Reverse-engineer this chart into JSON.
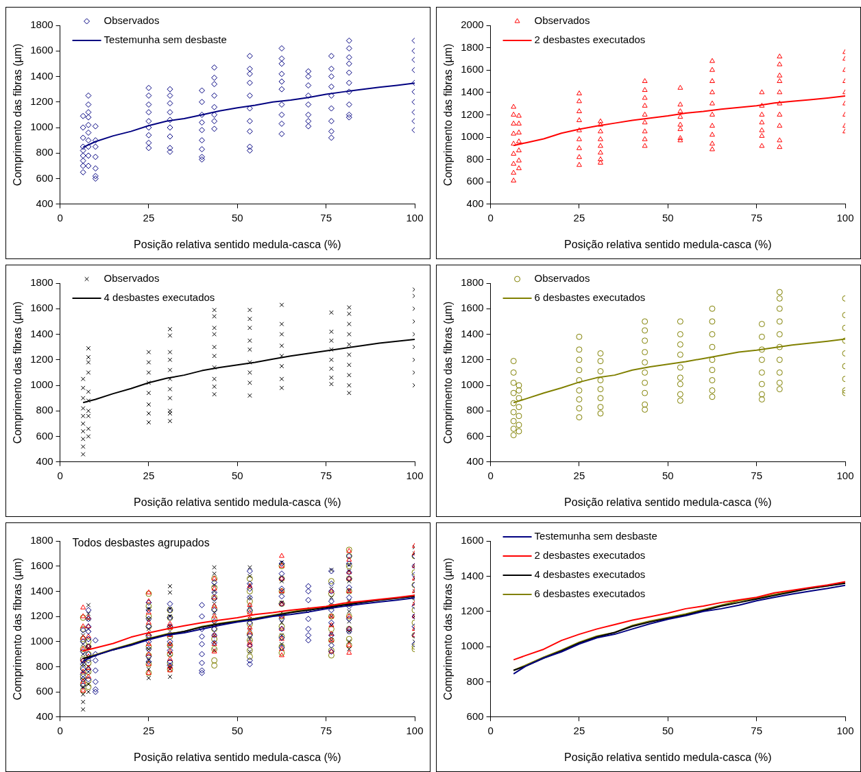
{
  "chart_data": [
    {
      "type": "scatter",
      "xlabel": "Posição relativa sentido medula-casca (%)",
      "ylabel": "Comprimento das fibras (µm)",
      "xlim": [
        0,
        100
      ],
      "xticks": [
        0,
        25,
        50,
        75,
        100
      ],
      "ylim": [
        400,
        1800
      ],
      "yticks": [
        400,
        600,
        800,
        1000,
        1200,
        1400,
        1600,
        1800
      ],
      "legend": "top left",
      "x": [
        6.5,
        10,
        15,
        20,
        25,
        30,
        35,
        40,
        45,
        50,
        55,
        60,
        65,
        70,
        75,
        80,
        85,
        90,
        95,
        100
      ],
      "series": [
        {
          "name": "Observados",
          "color": "#000080",
          "marker": "diamond",
          "x": [
            6.5,
            6.5,
            6.5,
            6.5,
            6.5,
            6.5,
            6.5,
            6.5,
            6.5,
            8,
            8,
            8,
            8,
            8,
            8,
            8,
            8,
            8,
            8,
            10,
            10,
            10,
            10,
            10,
            10,
            10,
            25,
            25,
            25,
            25,
            25,
            25,
            25,
            25,
            25,
            31,
            31,
            31,
            31,
            31,
            31,
            31,
            31,
            31,
            40,
            40,
            40,
            40,
            40,
            40,
            40,
            40,
            40,
            43.5,
            43.5,
            43.5,
            43.5,
            43.5,
            43.5,
            43.5,
            43.5,
            53.5,
            53.5,
            53.5,
            53.5,
            53.5,
            53.5,
            53.5,
            53.5,
            53.5,
            53.5,
            62.5,
            62.5,
            62.5,
            62.5,
            62.5,
            62.5,
            62.5,
            62.5,
            62.5,
            62.5,
            70,
            70,
            70,
            70,
            70,
            70,
            70,
            70,
            76.5,
            76.5,
            76.5,
            76.5,
            76.5,
            76.5,
            76.5,
            76.5,
            76.5,
            81.5,
            81.5,
            81.5,
            81.5,
            81.5,
            81.5,
            81.5,
            81.5,
            81.5,
            81.5,
            100,
            100,
            100,
            100,
            100,
            100,
            100,
            100,
            100,
            100
          ],
          "values": [
            650,
            700,
            740,
            780,
            820,
            850,
            920,
            1000,
            1090,
            700,
            780,
            850,
            900,
            960,
            1020,
            1080,
            1120,
            1180,
            1250,
            600,
            620,
            680,
            770,
            850,
            900,
            1010,
            840,
            880,
            940,
            1000,
            1050,
            1120,
            1180,
            1250,
            1310,
            810,
            840,
            930,
            1000,
            1060,
            1120,
            1190,
            1250,
            1300,
            750,
            770,
            830,
            900,
            980,
            1040,
            1100,
            1200,
            1290,
            990,
            1050,
            1100,
            1160,
            1250,
            1340,
            1390,
            1470,
            820,
            850,
            970,
            1050,
            1150,
            1250,
            1350,
            1420,
            1460,
            1560,
            950,
            1030,
            1100,
            1180,
            1300,
            1360,
            1420,
            1500,
            1540,
            1620,
            1010,
            1050,
            1100,
            1180,
            1250,
            1330,
            1400,
            1440,
            920,
            970,
            1050,
            1150,
            1250,
            1320,
            1400,
            1460,
            1560,
            1080,
            1100,
            1180,
            1280,
            1350,
            1430,
            1500,
            1550,
            1620,
            1680,
            980,
            1050,
            1120,
            1200,
            1280,
            1350,
            1450,
            1530,
            1600,
            1680
          ]
        },
        {
          "name": "Testemunha sem desbaste",
          "type": "line",
          "color": "#000080",
          "marker": "none",
          "values": [
            845,
            890,
            935,
            970,
            1015,
            1050,
            1070,
            1100,
            1130,
            1155,
            1175,
            1200,
            1215,
            1235,
            1260,
            1280,
            1298,
            1315,
            1330,
            1348
          ]
        }
      ]
    },
    {
      "type": "scatter",
      "xlabel": "Posição relativa sentido medula-casca (%)",
      "ylabel": "Comprimento das fibras (µm)",
      "xlim": [
        0,
        100
      ],
      "xticks": [
        0,
        25,
        50,
        75,
        100
      ],
      "ylim": [
        400,
        2000
      ],
      "yticks": [
        400,
        600,
        800,
        1000,
        1200,
        1400,
        1600,
        1800,
        2000
      ],
      "legend": "top left",
      "x": [
        6.5,
        10,
        15,
        20,
        25,
        30,
        35,
        40,
        45,
        50,
        55,
        60,
        65,
        70,
        75,
        80,
        85,
        90,
        95,
        100
      ],
      "series": [
        {
          "name": "Observados",
          "color": "#ff0000",
          "marker": "triangle",
          "x": [
            6.5,
            6.5,
            6.5,
            6.5,
            6.5,
            6.5,
            6.5,
            6.5,
            6.5,
            8,
            8,
            8,
            8,
            8,
            8,
            8,
            25,
            25,
            25,
            25,
            25,
            25,
            25,
            25,
            25,
            31,
            31,
            31,
            31,
            31,
            31,
            31,
            31,
            43.5,
            43.5,
            43.5,
            43.5,
            43.5,
            43.5,
            43.5,
            43.5,
            43.5,
            53.5,
            53.5,
            53.5,
            53.5,
            53.5,
            53.5,
            53.5,
            53.5,
            62.5,
            62.5,
            62.5,
            62.5,
            62.5,
            62.5,
            62.5,
            62.5,
            62.5,
            62.5,
            76.5,
            76.5,
            76.5,
            76.5,
            76.5,
            76.5,
            76.5,
            81.5,
            81.5,
            81.5,
            81.5,
            81.5,
            81.5,
            81.5,
            81.5,
            81.5,
            81.5,
            100,
            100,
            100,
            100,
            100,
            100,
            100,
            100,
            100
          ],
          "values": [
            610,
            680,
            760,
            850,
            940,
            1030,
            1120,
            1200,
            1270,
            720,
            790,
            880,
            960,
            1040,
            1120,
            1190,
            750,
            820,
            900,
            980,
            1060,
            1150,
            1230,
            1320,
            1390,
            770,
            800,
            860,
            920,
            980,
            1050,
            1110,
            1140,
            920,
            980,
            1050,
            1130,
            1200,
            1280,
            1350,
            1420,
            1500,
            970,
            990,
            1070,
            1110,
            1180,
            1230,
            1290,
            1440,
            890,
            940,
            1020,
            1100,
            1200,
            1300,
            1400,
            1500,
            1600,
            1680,
            920,
            1010,
            1060,
            1130,
            1200,
            1280,
            1400,
            910,
            970,
            1100,
            1200,
            1300,
            1400,
            1500,
            1550,
            1650,
            1720,
            1050,
            1100,
            1200,
            1300,
            1400,
            1500,
            1600,
            1700,
            1760
          ]
        },
        {
          "name": "2 desbastes executados",
          "type": "line",
          "color": "#ff0000",
          "marker": "none",
          "values": [
            925,
            950,
            985,
            1035,
            1070,
            1100,
            1125,
            1150,
            1170,
            1190,
            1215,
            1230,
            1250,
            1265,
            1280,
            1305,
            1320,
            1335,
            1350,
            1368
          ]
        }
      ]
    },
    {
      "type": "scatter",
      "xlabel": "Posição relativa sentido medula-casca (%)",
      "ylabel": "Comprimento das fibras (µm)",
      "xlim": [
        0,
        100
      ],
      "xticks": [
        0,
        25,
        50,
        75,
        100
      ],
      "ylim": [
        400,
        1800
      ],
      "yticks": [
        400,
        600,
        800,
        1000,
        1200,
        1400,
        1600,
        1800
      ],
      "legend": "top left",
      "x": [
        6.5,
        10,
        15,
        20,
        25,
        30,
        35,
        40,
        45,
        50,
        55,
        60,
        65,
        70,
        75,
        80,
        85,
        90,
        95,
        100
      ],
      "series": [
        {
          "name": "Observados",
          "color": "#000000",
          "marker": "cross",
          "x": [
            6.5,
            6.5,
            6.5,
            6.5,
            6.5,
            6.5,
            6.5,
            6.5,
            6.5,
            6.5,
            8,
            8,
            8,
            8,
            8,
            8,
            8,
            8,
            8,
            8,
            25,
            25,
            25,
            25,
            25,
            25,
            25,
            25,
            31,
            31,
            31,
            31,
            31,
            31,
            31,
            31,
            31,
            31,
            31,
            43.5,
            43.5,
            43.5,
            43.5,
            43.5,
            43.5,
            43.5,
            43.5,
            43.5,
            43.5,
            53.5,
            53.5,
            53.5,
            53.5,
            53.5,
            53.5,
            53.5,
            53.5,
            53.5,
            62.5,
            62.5,
            62.5,
            62.5,
            62.5,
            62.5,
            62.5,
            62.5,
            76.5,
            76.5,
            76.5,
            76.5,
            76.5,
            76.5,
            76.5,
            76.5,
            81.5,
            81.5,
            81.5,
            81.5,
            81.5,
            81.5,
            81.5,
            81.5,
            81.5,
            81.5,
            100,
            100,
            100,
            100,
            100,
            100,
            100,
            100,
            100
          ],
          "values": [
            460,
            520,
            580,
            640,
            700,
            760,
            820,
            900,
            980,
            1050,
            600,
            660,
            760,
            800,
            880,
            950,
            1100,
            1180,
            1220,
            1290,
            710,
            780,
            850,
            940,
            1020,
            1100,
            1180,
            1260,
            720,
            780,
            800,
            900,
            970,
            1050,
            1120,
            1200,
            1260,
            1390,
            1440,
            930,
            990,
            1050,
            1140,
            1230,
            1300,
            1400,
            1450,
            1540,
            1590,
            920,
            1020,
            1100,
            1180,
            1280,
            1350,
            1450,
            1520,
            1590,
            980,
            1050,
            1150,
            1230,
            1310,
            1400,
            1480,
            1630,
            1010,
            1060,
            1130,
            1200,
            1280,
            1350,
            1420,
            1570,
            940,
            1000,
            1080,
            1160,
            1240,
            1320,
            1400,
            1480,
            1560,
            1610,
            1000,
            1100,
            1200,
            1300,
            1400,
            1500,
            1600,
            1700,
            1750
          ]
        },
        {
          "name": "4 desbastes executados",
          "type": "line",
          "color": "#000000",
          "marker": "none",
          "values": [
            865,
            890,
            935,
            975,
            1020,
            1055,
            1080,
            1115,
            1140,
            1160,
            1180,
            1205,
            1230,
            1250,
            1270,
            1290,
            1310,
            1330,
            1345,
            1360
          ]
        }
      ]
    },
    {
      "type": "scatter",
      "xlabel": "Posição relativa sentido medula-casca (%)",
      "ylabel": "Comprimento das fibras (µm)",
      "xlim": [
        0,
        100
      ],
      "xticks": [
        0,
        25,
        50,
        75,
        100
      ],
      "ylim": [
        400,
        1800
      ],
      "yticks": [
        400,
        600,
        800,
        1000,
        1200,
        1400,
        1600,
        1800
      ],
      "legend": "top left",
      "x": [
        6.5,
        10,
        15,
        20,
        25,
        30,
        35,
        40,
        45,
        50,
        55,
        60,
        65,
        70,
        75,
        80,
        85,
        90,
        95,
        100
      ],
      "series": [
        {
          "name": "Observados",
          "color": "#808000",
          "marker": "circle",
          "x": [
            6.5,
            6.5,
            6.5,
            6.5,
            6.5,
            6.5,
            6.5,
            6.5,
            6.5,
            8,
            8,
            8,
            8,
            8,
            8,
            8,
            25,
            25,
            25,
            25,
            25,
            25,
            25,
            25,
            25,
            31,
            31,
            31,
            31,
            31,
            31,
            31,
            31,
            43.5,
            43.5,
            43.5,
            43.5,
            43.5,
            43.5,
            43.5,
            43.5,
            43.5,
            43.5,
            53.5,
            53.5,
            53.5,
            53.5,
            53.5,
            53.5,
            53.5,
            53.5,
            53.5,
            62.5,
            62.5,
            62.5,
            62.5,
            62.5,
            62.5,
            62.5,
            62.5,
            62.5,
            76.5,
            76.5,
            76.5,
            76.5,
            76.5,
            76.5,
            76.5,
            76.5,
            81.5,
            81.5,
            81.5,
            81.5,
            81.5,
            81.5,
            81.5,
            81.5,
            81.5,
            81.5,
            100,
            100,
            100,
            100,
            100,
            100,
            100,
            100,
            100
          ],
          "values": [
            610,
            660,
            720,
            790,
            860,
            940,
            1020,
            1100,
            1190,
            640,
            690,
            760,
            830,
            900,
            960,
            1000,
            750,
            820,
            890,
            960,
            1040,
            1120,
            1200,
            1280,
            1380,
            780,
            830,
            900,
            970,
            1040,
            1110,
            1190,
            1250,
            810,
            850,
            940,
            1020,
            1100,
            1180,
            1260,
            1350,
            1430,
            1500,
            880,
            930,
            1010,
            1060,
            1140,
            1240,
            1320,
            1400,
            1500,
            910,
            960,
            1040,
            1120,
            1200,
            1300,
            1400,
            1500,
            1600,
            890,
            930,
            1010,
            1100,
            1200,
            1280,
            1380,
            1480,
            970,
            1020,
            1100,
            1200,
            1300,
            1400,
            1500,
            1600,
            1680,
            1730,
            940,
            960,
            1050,
            1150,
            1250,
            1350,
            1450,
            1550,
            1680
          ]
        },
        {
          "name": "6 desbastes executados",
          "type": "line",
          "color": "#808000",
          "marker": "none",
          "values": [
            865,
            895,
            940,
            980,
            1025,
            1060,
            1080,
            1120,
            1145,
            1165,
            1185,
            1210,
            1235,
            1260,
            1275,
            1295,
            1315,
            1330,
            1345,
            1362
          ]
        }
      ]
    },
    {
      "type": "scatter",
      "xlabel": "Posição relativa sentido medula-casca (%)",
      "ylabel": "Comprimento das fibras (µm)",
      "xlim": [
        0,
        100
      ],
      "xticks": [
        0,
        25,
        50,
        75,
        100
      ],
      "ylim": [
        400,
        1800
      ],
      "yticks": [
        400,
        600,
        800,
        1000,
        1200,
        1400,
        1600,
        1800
      ],
      "annotations": [
        "Todos desbastes agrupados"
      ],
      "x": [
        6.5,
        10,
        15,
        20,
        25,
        30,
        35,
        40,
        45,
        50,
        55,
        60,
        65,
        70,
        75,
        80,
        85,
        90,
        95,
        100
      ],
      "series": [
        {
          "color": "#000080",
          "marker": "diamond",
          "x": [
            6.5,
            6.5,
            6.5,
            6.5,
            6.5,
            6.5,
            6.5,
            6.5,
            6.5,
            8,
            8,
            8,
            8,
            8,
            8,
            8,
            8,
            8,
            8,
            10,
            10,
            10,
            10,
            10,
            10,
            10,
            25,
            25,
            25,
            25,
            25,
            25,
            25,
            25,
            25,
            31,
            31,
            31,
            31,
            31,
            31,
            31,
            31,
            31,
            40,
            40,
            40,
            40,
            40,
            40,
            40,
            40,
            40,
            43.5,
            43.5,
            43.5,
            43.5,
            43.5,
            43.5,
            43.5,
            43.5,
            53.5,
            53.5,
            53.5,
            53.5,
            53.5,
            53.5,
            53.5,
            53.5,
            53.5,
            53.5,
            62.5,
            62.5,
            62.5,
            62.5,
            62.5,
            62.5,
            62.5,
            62.5,
            62.5,
            62.5,
            70,
            70,
            70,
            70,
            70,
            70,
            70,
            70,
            76.5,
            76.5,
            76.5,
            76.5,
            76.5,
            76.5,
            76.5,
            76.5,
            76.5,
            81.5,
            81.5,
            81.5,
            81.5,
            81.5,
            81.5,
            81.5,
            81.5,
            81.5,
            81.5,
            100,
            100,
            100,
            100,
            100,
            100,
            100,
            100,
            100,
            100
          ],
          "values": [
            650,
            700,
            740,
            780,
            820,
            850,
            920,
            1000,
            1090,
            700,
            780,
            850,
            900,
            960,
            1020,
            1080,
            1120,
            1180,
            1250,
            600,
            620,
            680,
            770,
            850,
            900,
            1010,
            840,
            880,
            940,
            1000,
            1050,
            1120,
            1180,
            1250,
            1310,
            810,
            840,
            930,
            1000,
            1060,
            1120,
            1190,
            1250,
            1300,
            750,
            770,
            830,
            900,
            980,
            1040,
            1100,
            1200,
            1290,
            990,
            1050,
            1100,
            1160,
            1250,
            1340,
            1390,
            1470,
            820,
            850,
            970,
            1050,
            1150,
            1250,
            1350,
            1420,
            1460,
            1560,
            950,
            1030,
            1100,
            1180,
            1300,
            1360,
            1420,
            1500,
            1540,
            1620,
            1010,
            1050,
            1100,
            1180,
            1250,
            1330,
            1400,
            1440,
            920,
            970,
            1050,
            1150,
            1250,
            1320,
            1400,
            1460,
            1560,
            1080,
            1100,
            1180,
            1280,
            1350,
            1430,
            1500,
            1550,
            1620,
            1680,
            980,
            1050,
            1120,
            1200,
            1280,
            1350,
            1450,
            1530,
            1600,
            1680
          ]
        },
        {
          "color": "#ff0000",
          "marker": "triangle",
          "x": [
            6.5,
            6.5,
            6.5,
            6.5,
            6.5,
            6.5,
            6.5,
            6.5,
            6.5,
            8,
            8,
            8,
            8,
            8,
            8,
            8,
            25,
            25,
            25,
            25,
            25,
            25,
            25,
            25,
            25,
            31,
            31,
            31,
            31,
            31,
            31,
            31,
            31,
            43.5,
            43.5,
            43.5,
            43.5,
            43.5,
            43.5,
            43.5,
            43.5,
            43.5,
            53.5,
            53.5,
            53.5,
            53.5,
            53.5,
            53.5,
            53.5,
            53.5,
            62.5,
            62.5,
            62.5,
            62.5,
            62.5,
            62.5,
            62.5,
            62.5,
            62.5,
            62.5,
            76.5,
            76.5,
            76.5,
            76.5,
            76.5,
            76.5,
            76.5,
            81.5,
            81.5,
            81.5,
            81.5,
            81.5,
            81.5,
            81.5,
            81.5,
            81.5,
            81.5,
            100,
            100,
            100,
            100,
            100,
            100,
            100,
            100,
            100
          ],
          "values": [
            610,
            680,
            760,
            850,
            940,
            1030,
            1120,
            1200,
            1270,
            720,
            790,
            880,
            960,
            1040,
            1120,
            1190,
            750,
            820,
            900,
            980,
            1060,
            1150,
            1230,
            1320,
            1390,
            770,
            800,
            860,
            920,
            980,
            1050,
            1110,
            1140,
            920,
            980,
            1050,
            1130,
            1200,
            1280,
            1350,
            1420,
            1500,
            970,
            990,
            1070,
            1110,
            1180,
            1230,
            1290,
            1440,
            890,
            940,
            1020,
            1100,
            1200,
            1300,
            1400,
            1500,
            1600,
            1680,
            920,
            1010,
            1060,
            1130,
            1200,
            1280,
            1400,
            910,
            970,
            1100,
            1200,
            1300,
            1400,
            1500,
            1550,
            1650,
            1720,
            1050,
            1100,
            1200,
            1300,
            1400,
            1500,
            1600,
            1700,
            1760
          ]
        },
        {
          "color": "#000000",
          "marker": "cross",
          "x": [
            6.5,
            6.5,
            6.5,
            6.5,
            6.5,
            6.5,
            6.5,
            6.5,
            6.5,
            6.5,
            8,
            8,
            8,
            8,
            8,
            8,
            8,
            8,
            8,
            8,
            25,
            25,
            25,
            25,
            25,
            25,
            25,
            25,
            31,
            31,
            31,
            31,
            31,
            31,
            31,
            31,
            31,
            31,
            31,
            43.5,
            43.5,
            43.5,
            43.5,
            43.5,
            43.5,
            43.5,
            43.5,
            43.5,
            43.5,
            53.5,
            53.5,
            53.5,
            53.5,
            53.5,
            53.5,
            53.5,
            53.5,
            53.5,
            62.5,
            62.5,
            62.5,
            62.5,
            62.5,
            62.5,
            62.5,
            62.5,
            76.5,
            76.5,
            76.5,
            76.5,
            76.5,
            76.5,
            76.5,
            76.5,
            81.5,
            81.5,
            81.5,
            81.5,
            81.5,
            81.5,
            81.5,
            81.5,
            81.5,
            81.5,
            100,
            100,
            100,
            100,
            100,
            100,
            100,
            100,
            100
          ],
          "values": [
            460,
            520,
            580,
            640,
            700,
            760,
            820,
            900,
            980,
            1050,
            600,
            660,
            760,
            800,
            880,
            950,
            1100,
            1180,
            1220,
            1290,
            710,
            780,
            850,
            940,
            1020,
            1100,
            1180,
            1260,
            720,
            780,
            800,
            900,
            970,
            1050,
            1120,
            1200,
            1260,
            1390,
            1440,
            930,
            990,
            1050,
            1140,
            1230,
            1300,
            1400,
            1450,
            1540,
            1590,
            920,
            1020,
            1100,
            1180,
            1280,
            1350,
            1450,
            1520,
            1590,
            980,
            1050,
            1150,
            1230,
            1310,
            1400,
            1480,
            1630,
            1010,
            1060,
            1130,
            1200,
            1280,
            1350,
            1420,
            1570,
            940,
            1000,
            1080,
            1160,
            1240,
            1320,
            1400,
            1480,
            1560,
            1610,
            1000,
            1100,
            1200,
            1300,
            1400,
            1500,
            1600,
            1700,
            1750
          ]
        },
        {
          "color": "#808000",
          "marker": "circle",
          "x": [
            6.5,
            6.5,
            6.5,
            6.5,
            6.5,
            6.5,
            6.5,
            6.5,
            6.5,
            8,
            8,
            8,
            8,
            8,
            8,
            8,
            25,
            25,
            25,
            25,
            25,
            25,
            25,
            25,
            25,
            31,
            31,
            31,
            31,
            31,
            31,
            31,
            31,
            43.5,
            43.5,
            43.5,
            43.5,
            43.5,
            43.5,
            43.5,
            43.5,
            43.5,
            43.5,
            53.5,
            53.5,
            53.5,
            53.5,
            53.5,
            53.5,
            53.5,
            53.5,
            53.5,
            62.5,
            62.5,
            62.5,
            62.5,
            62.5,
            62.5,
            62.5,
            62.5,
            62.5,
            76.5,
            76.5,
            76.5,
            76.5,
            76.5,
            76.5,
            76.5,
            76.5,
            81.5,
            81.5,
            81.5,
            81.5,
            81.5,
            81.5,
            81.5,
            81.5,
            81.5,
            81.5,
            100,
            100,
            100,
            100,
            100,
            100,
            100,
            100,
            100
          ],
          "values": [
            610,
            660,
            720,
            790,
            860,
            940,
            1020,
            1100,
            1190,
            640,
            690,
            760,
            830,
            900,
            960,
            1000,
            750,
            820,
            890,
            960,
            1040,
            1120,
            1200,
            1280,
            1380,
            780,
            830,
            900,
            970,
            1040,
            1110,
            1190,
            1250,
            810,
            850,
            940,
            1020,
            1100,
            1180,
            1260,
            1350,
            1430,
            1500,
            880,
            930,
            1010,
            1060,
            1140,
            1240,
            1320,
            1400,
            1500,
            910,
            960,
            1040,
            1120,
            1200,
            1300,
            1400,
            1500,
            1600,
            890,
            930,
            1010,
            1100,
            1200,
            1280,
            1380,
            1480,
            970,
            1020,
            1100,
            1200,
            1300,
            1400,
            1500,
            1600,
            1680,
            1730,
            940,
            960,
            1050,
            1150,
            1250,
            1350,
            1450,
            1550,
            1680
          ]
        },
        {
          "type": "line",
          "color": "#000080",
          "marker": "none",
          "values": [
            845,
            890,
            935,
            970,
            1015,
            1050,
            1070,
            1100,
            1130,
            1155,
            1175,
            1200,
            1215,
            1235,
            1260,
            1280,
            1298,
            1315,
            1330,
            1348
          ]
        },
        {
          "type": "line",
          "color": "#ff0000",
          "marker": "none",
          "values": [
            925,
            950,
            985,
            1035,
            1070,
            1100,
            1125,
            1150,
            1170,
            1190,
            1215,
            1230,
            1250,
            1265,
            1280,
            1305,
            1320,
            1335,
            1350,
            1368
          ]
        },
        {
          "type": "line",
          "color": "#000000",
          "marker": "none",
          "values": [
            865,
            890,
            935,
            975,
            1020,
            1055,
            1080,
            1115,
            1140,
            1160,
            1180,
            1205,
            1230,
            1250,
            1270,
            1290,
            1310,
            1330,
            1345,
            1360
          ]
        },
        {
          "type": "line",
          "color": "#808000",
          "marker": "none",
          "values": [
            865,
            895,
            940,
            980,
            1025,
            1060,
            1080,
            1120,
            1145,
            1165,
            1185,
            1210,
            1235,
            1260,
            1275,
            1295,
            1315,
            1330,
            1345,
            1362
          ]
        }
      ]
    },
    {
      "type": "line",
      "xlabel": "Posição relativa sentido medula-casca (%)",
      "ylabel": "Comprimento das fibras (µm)",
      "xlim": [
        0,
        100
      ],
      "xticks": [
        0,
        25,
        50,
        75,
        100
      ],
      "ylim": [
        600,
        1600
      ],
      "yticks": [
        600,
        800,
        1000,
        1200,
        1400,
        1600
      ],
      "legend": "top left",
      "x": [
        6.5,
        10,
        15,
        20,
        25,
        30,
        35,
        40,
        45,
        50,
        55,
        60,
        65,
        70,
        75,
        80,
        85,
        90,
        95,
        100
      ],
      "series": [
        {
          "name": "Testemunha sem desbaste",
          "color": "#000080",
          "marker": "none",
          "values": [
            845,
            890,
            935,
            970,
            1015,
            1050,
            1070,
            1100,
            1130,
            1155,
            1175,
            1200,
            1215,
            1235,
            1260,
            1280,
            1298,
            1315,
            1330,
            1348
          ]
        },
        {
          "name": "2 desbastes executados",
          "color": "#ff0000",
          "marker": "none",
          "values": [
            925,
            950,
            985,
            1035,
            1070,
            1100,
            1125,
            1150,
            1170,
            1190,
            1215,
            1230,
            1250,
            1265,
            1280,
            1305,
            1320,
            1335,
            1350,
            1368
          ]
        },
        {
          "name": "4 desbastes executados",
          "color": "#000000",
          "marker": "none",
          "values": [
            865,
            890,
            935,
            975,
            1020,
            1055,
            1080,
            1115,
            1140,
            1160,
            1180,
            1205,
            1230,
            1250,
            1270,
            1290,
            1310,
            1330,
            1345,
            1360
          ]
        },
        {
          "name": "6 desbastes executados",
          "color": "#808000",
          "marker": "none",
          "values": [
            865,
            895,
            940,
            980,
            1025,
            1060,
            1080,
            1120,
            1145,
            1165,
            1185,
            1210,
            1235,
            1260,
            1275,
            1295,
            1315,
            1330,
            1345,
            1362
          ]
        }
      ]
    }
  ]
}
